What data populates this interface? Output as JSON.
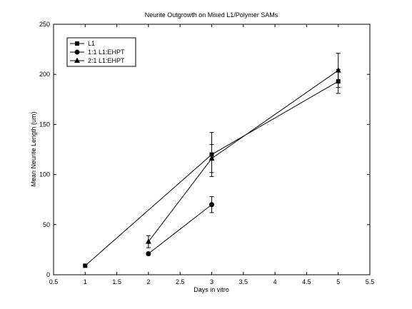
{
  "chart_data": {
    "type": "line",
    "title": "Neurite Outgrowth on Mixed L1/Polymer SAMs",
    "xlabel": "Days in vitro",
    "ylabel": "Mean Neurite Length (um)",
    "xlim": [
      0.5,
      5.5
    ],
    "ylim": [
      0,
      250
    ],
    "xticks": [
      "0.5",
      "1",
      "1.5",
      "2",
      "2.5",
      "3",
      "3.5",
      "4",
      "4.5",
      "5",
      "5.5"
    ],
    "yticks": [
      "0",
      "50",
      "100",
      "150",
      "200",
      "250"
    ],
    "grid": false,
    "legend_position": "top-left",
    "series": [
      {
        "name": "L1",
        "marker": "square",
        "points": [
          {
            "x": 1,
            "y": 9,
            "err": 1
          },
          {
            "x": 3,
            "y": 120,
            "err": 22
          },
          {
            "x": 5,
            "y": 193,
            "err": 12
          }
        ]
      },
      {
        "name": "1:1 L1:EHPT",
        "marker": "circle",
        "points": [
          {
            "x": 2,
            "y": 21,
            "err": 1.5
          },
          {
            "x": 3,
            "y": 70,
            "err": 8
          }
        ]
      },
      {
        "name": "2:1 L1:EHPT",
        "marker": "triangle",
        "points": [
          {
            "x": 2,
            "y": 33,
            "err": 6
          },
          {
            "x": 3,
            "y": 116,
            "err": 14
          },
          {
            "x": 5,
            "y": 204,
            "err": 17
          }
        ]
      }
    ]
  }
}
